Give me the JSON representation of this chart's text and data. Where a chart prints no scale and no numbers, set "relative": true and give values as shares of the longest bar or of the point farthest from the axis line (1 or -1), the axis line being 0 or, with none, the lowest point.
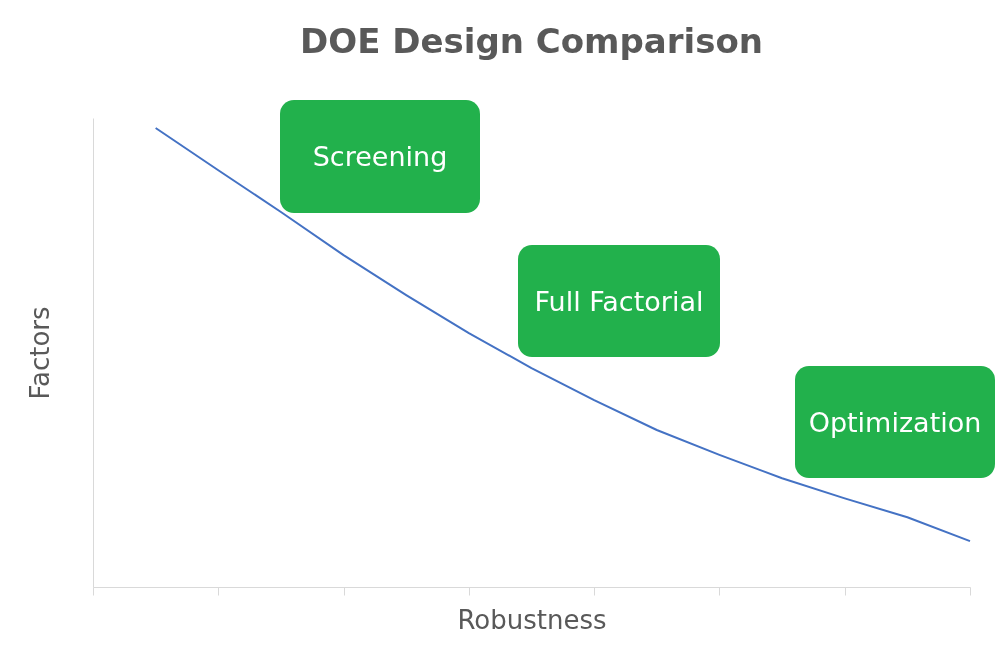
{
  "chart_data": {
    "type": "line",
    "title": "DOE Design Comparison",
    "xlabel": "Robustness",
    "ylabel": "Factors",
    "relative": true,
    "categories": [
      null,
      null,
      null,
      null,
      null,
      null,
      null,
      null,
      null,
      null,
      null,
      null,
      null,
      null
    ],
    "series": [
      {
        "color": "#4472c4",
        "values": [
          1,
          0.908,
          0.817,
          0.723,
          0.636,
          0.553,
          0.477,
          0.407,
          0.342,
          0.288,
          0.237,
          0.193,
          0.152,
          0.1
        ]
      }
    ],
    "annotations": [
      "Screening",
      "Full Factorial",
      "Optimization"
    ],
    "grid": false
  }
}
